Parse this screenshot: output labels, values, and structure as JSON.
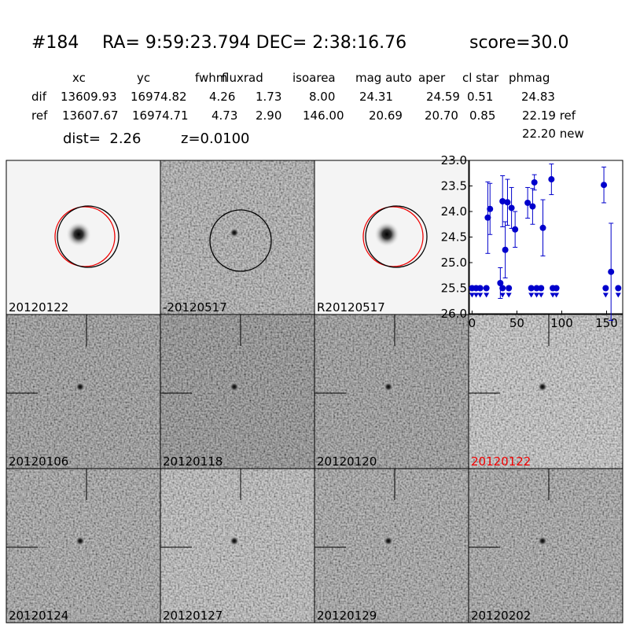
{
  "header": {
    "id": "#184",
    "coords": "RA= 9:59:23.794 DEC= 2:38:16.76",
    "score": "score=30.0"
  },
  "table": {
    "columns": [
      "xc",
      "yc",
      "fwhm",
      "fluxrad",
      "isoarea",
      "mag auto",
      "aper",
      "cl star",
      "phmag"
    ],
    "rows": [
      [
        "dif",
        "13609.93",
        "16974.82",
        "4.26",
        "1.73",
        "8.00",
        "24.31",
        "24.59",
        "0.51",
        "24.83"
      ],
      [
        "ref",
        "13607.67",
        "16974.71",
        "4.73",
        "2.90",
        "146.00",
        "20.69",
        "20.70",
        "0.85",
        "22.19 ref"
      ]
    ],
    "note": "22.20 new",
    "dist": "dist=  2.26",
    "z": "z=0.0100"
  },
  "stamps": [
    {
      "label": "20120122"
    },
    {
      "label": "-20120517"
    },
    {
      "label": "R20120517"
    },
    {
      "label": "20120106"
    },
    {
      "label": "20120118"
    },
    {
      "label": "20120120"
    },
    {
      "label": "20120122",
      "highlight": true
    },
    {
      "label": "20120124"
    },
    {
      "label": "20120127"
    },
    {
      "label": "20120129"
    },
    {
      "label": "20120202"
    }
  ],
  "chart_data": {
    "type": "scatter",
    "invert_y": true,
    "xlim": [
      -3,
      168
    ],
    "xticks": [
      0,
      50,
      100,
      150
    ],
    "ylim": [
      26,
      23
    ],
    "yticks": [
      {
        "value": 23,
        "label": "23.0"
      },
      {
        "value": 23.5,
        "label": "23.5"
      },
      {
        "value": 24,
        "label": "24.0"
      },
      {
        "value": 24.5,
        "label": "24.5"
      },
      {
        "value": 25,
        "label": "25.0"
      },
      {
        "value": 25.5,
        "label": "25.5"
      },
      {
        "value": 26,
        "label": "26.0"
      }
    ],
    "series": [
      {
        "color": "#0000cc",
        "marker": "circle",
        "x": [
          17.5,
          20,
          31.5,
          34,
          37,
          39.5,
          44,
          48,
          62,
          67.5,
          69.5,
          79,
          88.5,
          147,
          155
        ],
        "values": [
          24.12,
          23.95,
          25.4,
          23.8,
          24.75,
          23.82,
          23.93,
          24.35,
          23.83,
          23.9,
          23.43,
          24.32,
          23.37,
          23.48,
          25.18
        ],
        "errors": [
          0.7,
          0.5,
          0.3,
          0.5,
          0.55,
          0.45,
          0.4,
          0.35,
          0.3,
          0.35,
          0.15,
          0.55,
          0.3,
          0.35,
          0.95
        ]
      },
      {
        "color": "#0000cc",
        "marker": "upper-limit",
        "x": [
          0,
          4.5,
          9,
          16,
          34,
          41,
          66,
          72,
          77,
          90,
          94,
          149,
          163
        ],
        "values": [
          25.5,
          25.5,
          25.5,
          25.5,
          25.5,
          25.5,
          25.5,
          25.5,
          25.5,
          25.5,
          25.5,
          25.5,
          25.5
        ]
      }
    ]
  }
}
